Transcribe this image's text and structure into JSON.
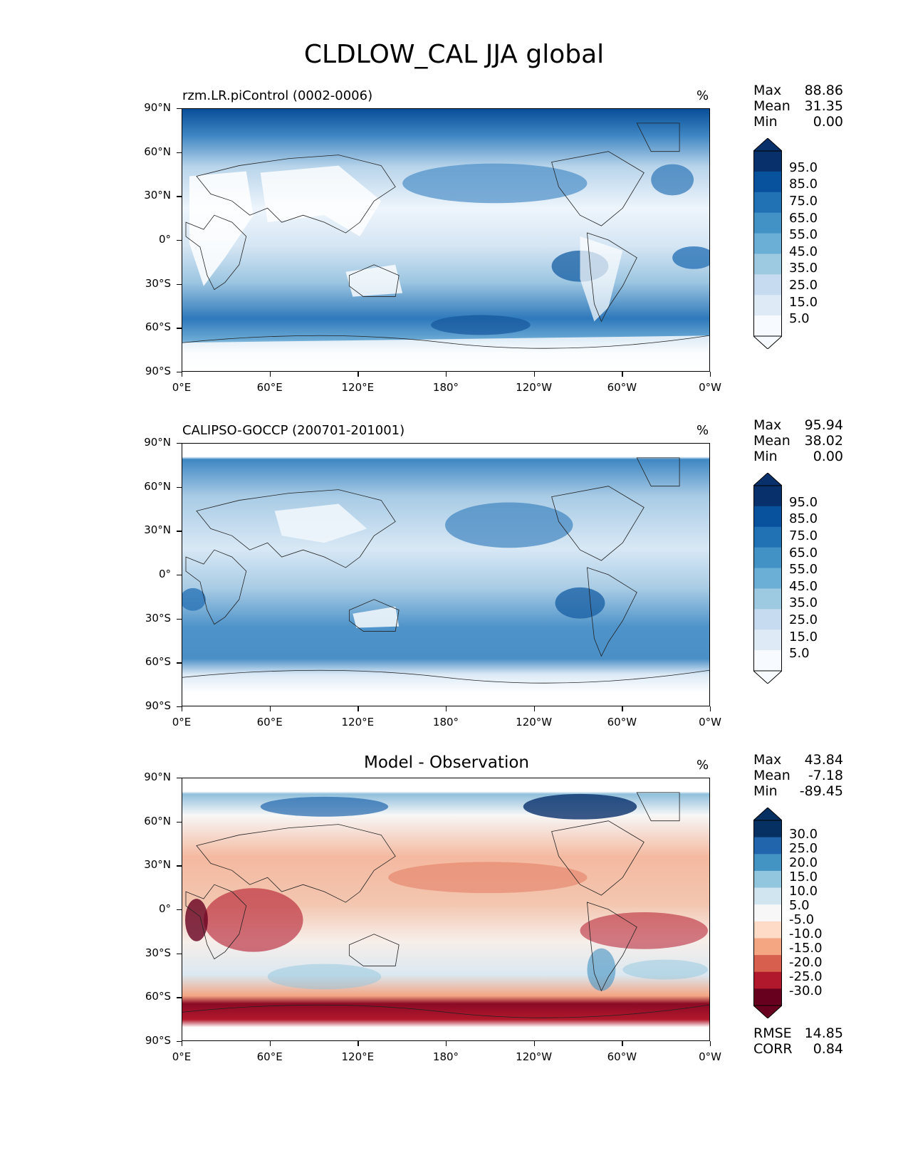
{
  "figure": {
    "title": "CLDLOW_CAL JJA global"
  },
  "axes": {
    "y_ticks": [
      "90°N",
      "60°N",
      "30°N",
      "0°",
      "30°S",
      "60°S",
      "90°S"
    ],
    "x_ticks": [
      "0°E",
      "60°E",
      "120°E",
      "180°",
      "120°W",
      "60°W",
      "0°W"
    ]
  },
  "panels": [
    {
      "title": "rzm.LR.piControl (0002-0006)",
      "title_style": "left",
      "units": "%",
      "stats": [
        {
          "label": "Max",
          "value": "88.86"
        },
        {
          "label": "Mean",
          "value": "31.35"
        },
        {
          "label": "Min",
          "value": "0.00"
        }
      ],
      "colorbar_labels": [
        "95.0",
        "85.0",
        "75.0",
        "65.0",
        "55.0",
        "45.0",
        "35.0",
        "25.0",
        "15.0",
        "5.0"
      ],
      "colors": [
        "#f7fbff",
        "#deebf7",
        "#c6dbef",
        "#9ecae1",
        "#6baed6",
        "#4292c6",
        "#2171b5",
        "#08519c",
        "#08306b"
      ]
    },
    {
      "title": "CALIPSO-GOCCP (200701-201001)",
      "title_style": "left",
      "units": "%",
      "stats": [
        {
          "label": "Max",
          "value": "95.94"
        },
        {
          "label": "Mean",
          "value": "38.02"
        },
        {
          "label": "Min",
          "value": "0.00"
        }
      ],
      "colorbar_labels": [
        "95.0",
        "85.0",
        "75.0",
        "65.0",
        "55.0",
        "45.0",
        "35.0",
        "25.0",
        "15.0",
        "5.0"
      ],
      "colors": [
        "#f7fbff",
        "#deebf7",
        "#c6dbef",
        "#9ecae1",
        "#6baed6",
        "#4292c6",
        "#2171b5",
        "#08519c",
        "#08306b"
      ]
    },
    {
      "title": "Model - Observation",
      "title_style": "center",
      "units": "%",
      "stats": [
        {
          "label": "Max",
          "value": "43.84"
        },
        {
          "label": "Mean",
          "value": "-7.18"
        },
        {
          "label": "Min",
          "value": "-89.45"
        }
      ],
      "colorbar_labels": [
        "30.0",
        "25.0",
        "20.0",
        "15.0",
        "10.0",
        "5.0",
        "-5.0",
        "-10.0",
        "-15.0",
        "-20.0",
        "-25.0",
        "-30.0"
      ],
      "colors": [
        "#67001f",
        "#b2182b",
        "#d6604d",
        "#f4a582",
        "#fddbc7",
        "#f7f7f7",
        "#d1e5f0",
        "#92c5de",
        "#4393c3",
        "#2166ac",
        "#053061"
      ],
      "extra_stats": [
        {
          "label": "RMSE",
          "value": "14.85"
        },
        {
          "label": "CORR",
          "value": "0.84"
        }
      ]
    }
  ]
}
